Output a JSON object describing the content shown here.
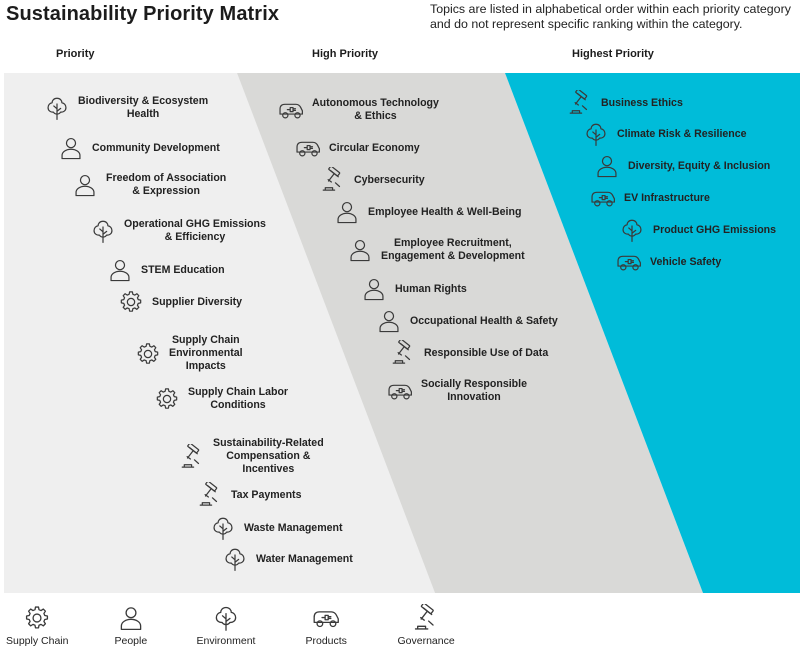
{
  "title": "Sustainability Priority Matrix",
  "note": [
    "Topics are listed in alphabetical order within each priority category",
    "and do not represent specific ranking within the category."
  ],
  "colors": {
    "priority_bg": "#efefef",
    "high_bg": "#d9d9d7",
    "highest_bg": "#00bcd9",
    "icon": "#3a3a3a"
  },
  "categories": [
    {
      "name": "Priority",
      "topics": [
        {
          "icon": "environment-icon",
          "lines": [
            "Biodiversity & Ecosystem",
            "Health"
          ]
        },
        {
          "icon": "people-icon",
          "lines": [
            "Community Development"
          ]
        },
        {
          "icon": "people-icon",
          "lines": [
            "Freedom of Association",
            "& Expression"
          ]
        },
        {
          "icon": "environment-icon",
          "lines": [
            "Operational GHG Emissions",
            "& Efficiency"
          ]
        },
        {
          "icon": "people-icon",
          "lines": [
            "STEM Education"
          ]
        },
        {
          "icon": "supply-chain-icon",
          "lines": [
            "Supplier Diversity"
          ]
        },
        {
          "icon": "supply-chain-icon",
          "lines": [
            "Supply Chain",
            "Environmental",
            "Impacts"
          ]
        },
        {
          "icon": "supply-chain-icon",
          "lines": [
            "Supply Chain Labor",
            "Conditions"
          ]
        },
        {
          "icon": "governance-icon",
          "lines": [
            "Sustainability-Related",
            "Compensation &",
            "Incentives"
          ]
        },
        {
          "icon": "governance-icon",
          "lines": [
            "Tax Payments"
          ]
        },
        {
          "icon": "environment-icon",
          "lines": [
            "Waste Management"
          ]
        },
        {
          "icon": "environment-icon",
          "lines": [
            "Water Management"
          ]
        }
      ]
    },
    {
      "name": "High Priority",
      "topics": [
        {
          "icon": "products-icon",
          "lines": [
            "Autonomous Technology",
            "& Ethics"
          ]
        },
        {
          "icon": "products-icon",
          "lines": [
            "Circular Economy"
          ]
        },
        {
          "icon": "governance-icon",
          "lines": [
            "Cybersecurity"
          ]
        },
        {
          "icon": "people-icon",
          "lines": [
            "Employee Health & Well-Being"
          ]
        },
        {
          "icon": "people-icon",
          "lines": [
            "Employee Recruitment,",
            "Engagement & Development"
          ]
        },
        {
          "icon": "people-icon",
          "lines": [
            "Human Rights"
          ]
        },
        {
          "icon": "people-icon",
          "lines": [
            "Occupational Health & Safety"
          ]
        },
        {
          "icon": "governance-icon",
          "lines": [
            "Responsible Use of Data"
          ]
        },
        {
          "icon": "products-icon",
          "lines": [
            "Socially Responsible",
            "Innovation"
          ]
        }
      ]
    },
    {
      "name": "Highest Priority",
      "topics": [
        {
          "icon": "governance-icon",
          "lines": [
            "Business Ethics"
          ]
        },
        {
          "icon": "environment-icon",
          "lines": [
            "Climate Risk & Resilience"
          ]
        },
        {
          "icon": "people-icon",
          "lines": [
            "Diversity, Equity & Inclusion"
          ]
        },
        {
          "icon": "products-icon",
          "lines": [
            "EV Infrastructure"
          ]
        },
        {
          "icon": "environment-icon",
          "lines": [
            "Product GHG Emissions"
          ]
        },
        {
          "icon": "products-icon",
          "lines": [
            "Vehicle Safety"
          ]
        }
      ]
    }
  ],
  "legend": [
    {
      "icon": "supply-chain-icon",
      "label": "Supply Chain"
    },
    {
      "icon": "people-icon",
      "label": "People"
    },
    {
      "icon": "environment-icon",
      "label": "Environment"
    },
    {
      "icon": "products-icon",
      "label": "Products"
    },
    {
      "icon": "governance-icon",
      "label": "Governance"
    }
  ]
}
